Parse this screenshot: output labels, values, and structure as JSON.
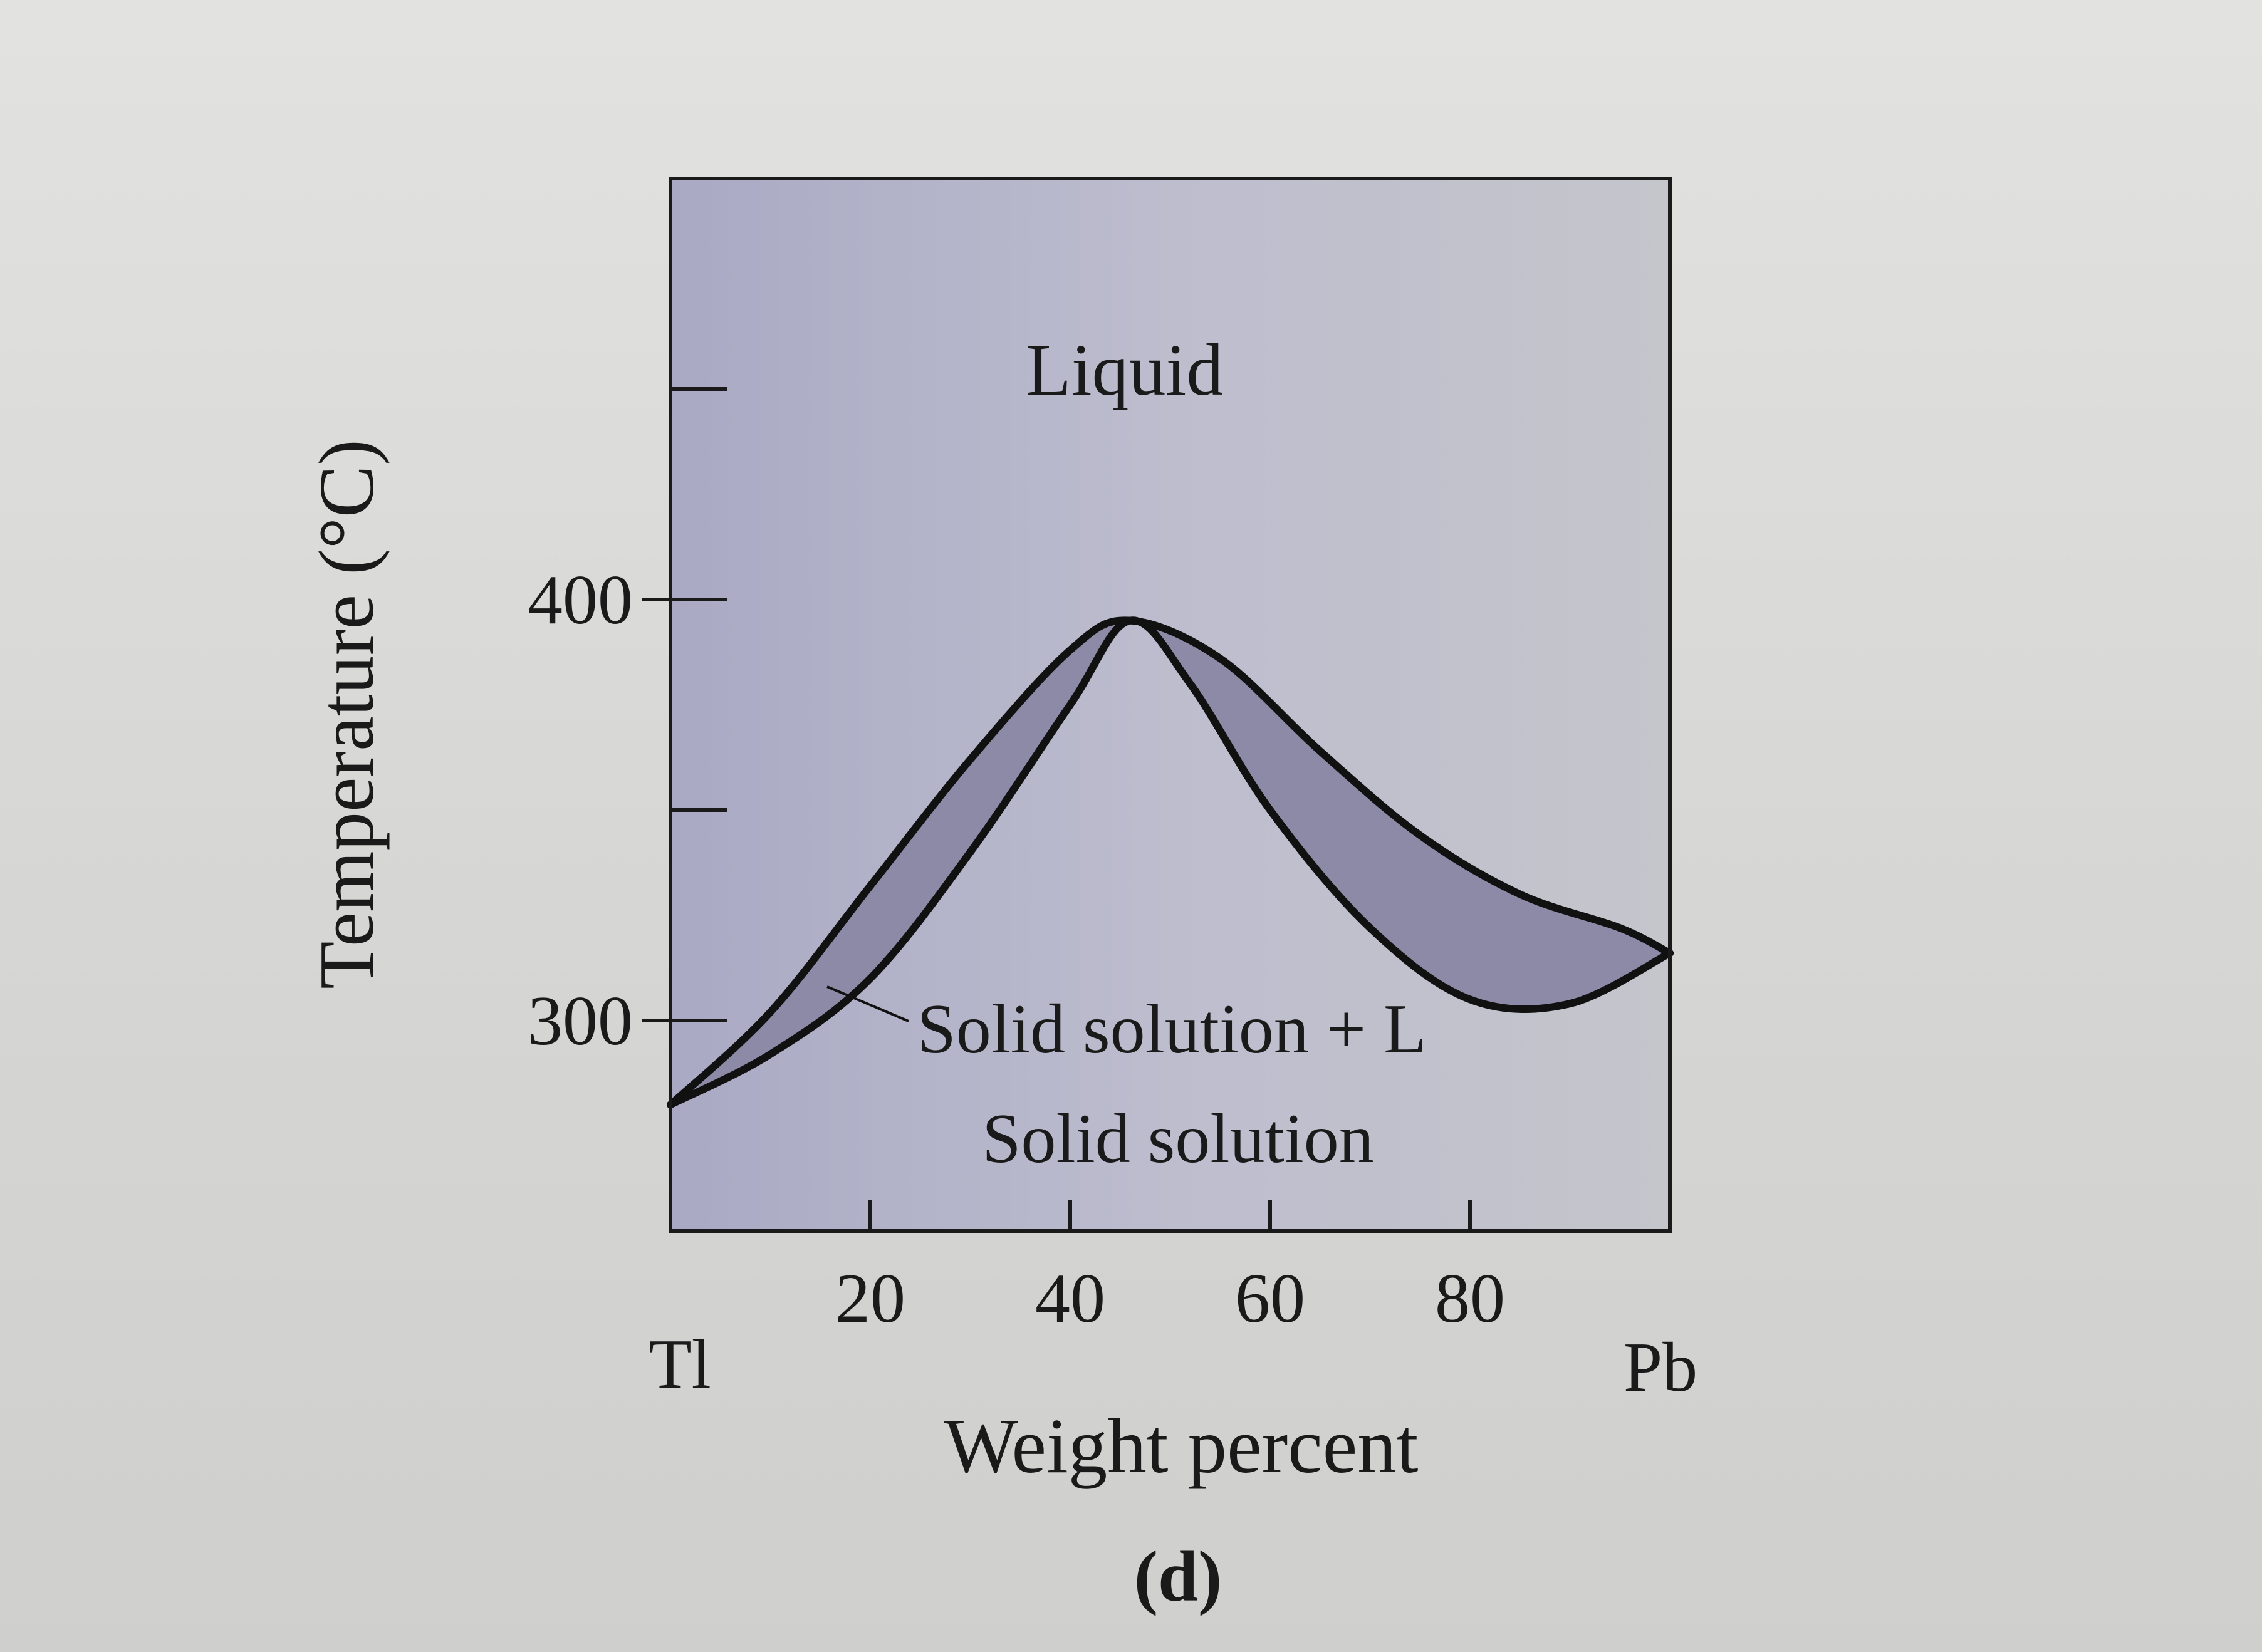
{
  "chart_data": {
    "type": "area",
    "xlabel": "Weight percent",
    "ylabel": "Temperature (°C)",
    "caption": "(d)",
    "left_component": "Tl",
    "right_component": "Pb",
    "xlim": [
      0,
      100
    ],
    "ylim": [
      250,
      500
    ],
    "x_ticks": [
      20,
      40,
      60,
      80
    ],
    "y_ticks": [
      300,
      400
    ],
    "y_minor_ticks": [
      350,
      450
    ],
    "regions": {
      "liquid": "Liquid",
      "two_phase": "Solid solution + L",
      "solid": "Solid solution"
    },
    "liquidus": [
      {
        "x": 0,
        "y": 280
      },
      {
        "x": 10,
        "y": 302
      },
      {
        "x": 20,
        "y": 332
      },
      {
        "x": 30,
        "y": 362
      },
      {
        "x": 40,
        "y": 388
      },
      {
        "x": 46,
        "y": 395
      },
      {
        "x": 55,
        "y": 386
      },
      {
        "x": 65,
        "y": 364
      },
      {
        "x": 75,
        "y": 344
      },
      {
        "x": 85,
        "y": 330
      },
      {
        "x": 95,
        "y": 322
      },
      {
        "x": 100,
        "y": 316
      }
    ],
    "solidus": [
      {
        "x": 0,
        "y": 280
      },
      {
        "x": 10,
        "y": 292
      },
      {
        "x": 20,
        "y": 310
      },
      {
        "x": 30,
        "y": 340
      },
      {
        "x": 40,
        "y": 375
      },
      {
        "x": 46,
        "y": 395
      },
      {
        "x": 52,
        "y": 380
      },
      {
        "x": 60,
        "y": 350
      },
      {
        "x": 70,
        "y": 322
      },
      {
        "x": 80,
        "y": 305
      },
      {
        "x": 90,
        "y": 304
      },
      {
        "x": 100,
        "y": 316
      }
    ],
    "colors": {
      "frame": "#1a1a1a",
      "background": "#b9b9cc",
      "two_phase_fill": "#8c8aa6"
    }
  }
}
